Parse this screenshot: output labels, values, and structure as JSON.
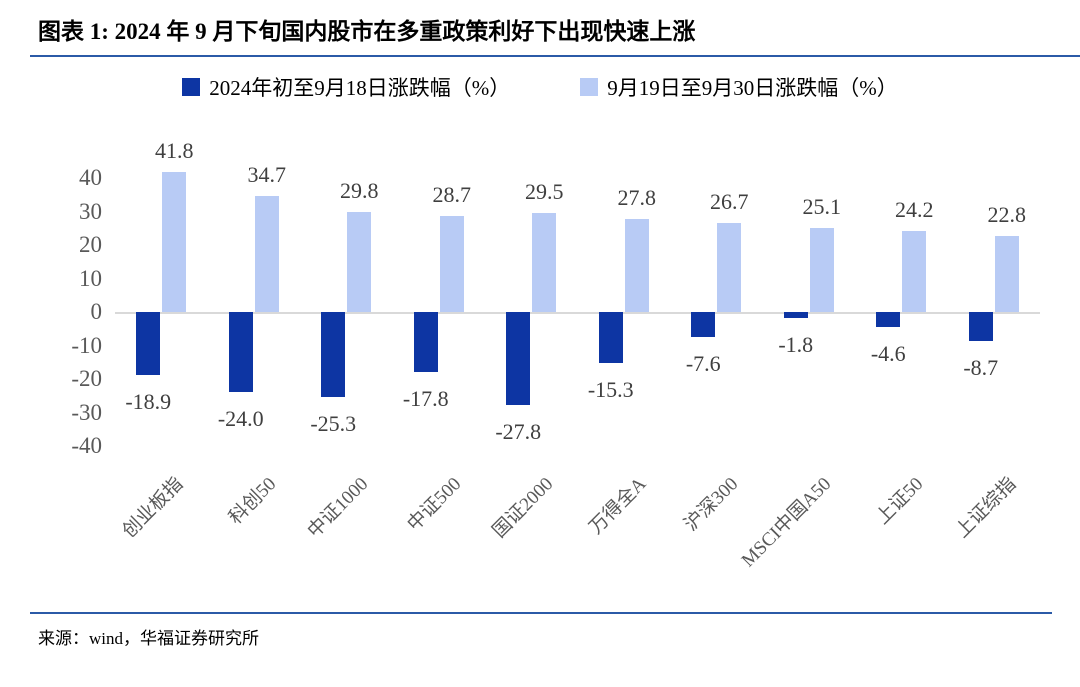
{
  "header": {
    "title": "图表 1: 2024 年 9 月下旬国内股市在多重政策利好下出现快速上涨"
  },
  "colors": {
    "accent_rule": "#2B5AA7",
    "series_dark_blue": "#0D35A3",
    "series_light_blue": "#B8CBF5",
    "baseline_gray": "#D9D9D9",
    "tick_text": "#595959",
    "value_text": "#3F3F3F"
  },
  "chart_data": {
    "type": "bar",
    "title": "2024 年 9 月下旬国内股市在多重政策利好下出现快速上涨",
    "categories": [
      "创业板指",
      "科创50",
      "中证1000",
      "中证500",
      "国证2000",
      "万得全A",
      "沪深300",
      "MSCI中国A50",
      "上证50",
      "上证综指"
    ],
    "series": [
      {
        "name": "2024年初至9月18日涨跌幅（%）",
        "color": "#0D35A3",
        "values": [
          -18.9,
          -24.0,
          -25.3,
          -17.8,
          -27.8,
          -15.3,
          -7.6,
          -1.8,
          -4.6,
          -8.7
        ],
        "labels": [
          "-18.9",
          "-24.0",
          "-25.3",
          "-17.8",
          "-27.8",
          "-15.3",
          "-7.6",
          "-1.8",
          "-4.6",
          "-8.7"
        ]
      },
      {
        "name": "9月19日至9月30日涨跌幅（%）",
        "color": "#B8CBF5",
        "values": [
          41.8,
          34.7,
          29.8,
          28.7,
          29.5,
          27.8,
          26.7,
          25.1,
          24.2,
          22.8
        ],
        "labels": [
          "41.8",
          "34.7",
          "29.8",
          "28.7",
          "29.5",
          "27.8",
          "26.7",
          "25.1",
          "24.2",
          "22.8"
        ]
      }
    ],
    "y_ticks": [
      40,
      30,
      20,
      10,
      0,
      -10,
      -20,
      -30,
      -40
    ],
    "ylim": [
      -45,
      48
    ],
    "xlabel": "",
    "ylabel": "",
    "grid": false,
    "legend_position": "top"
  },
  "footer": {
    "source": "来源：wind，华福证券研究所"
  }
}
